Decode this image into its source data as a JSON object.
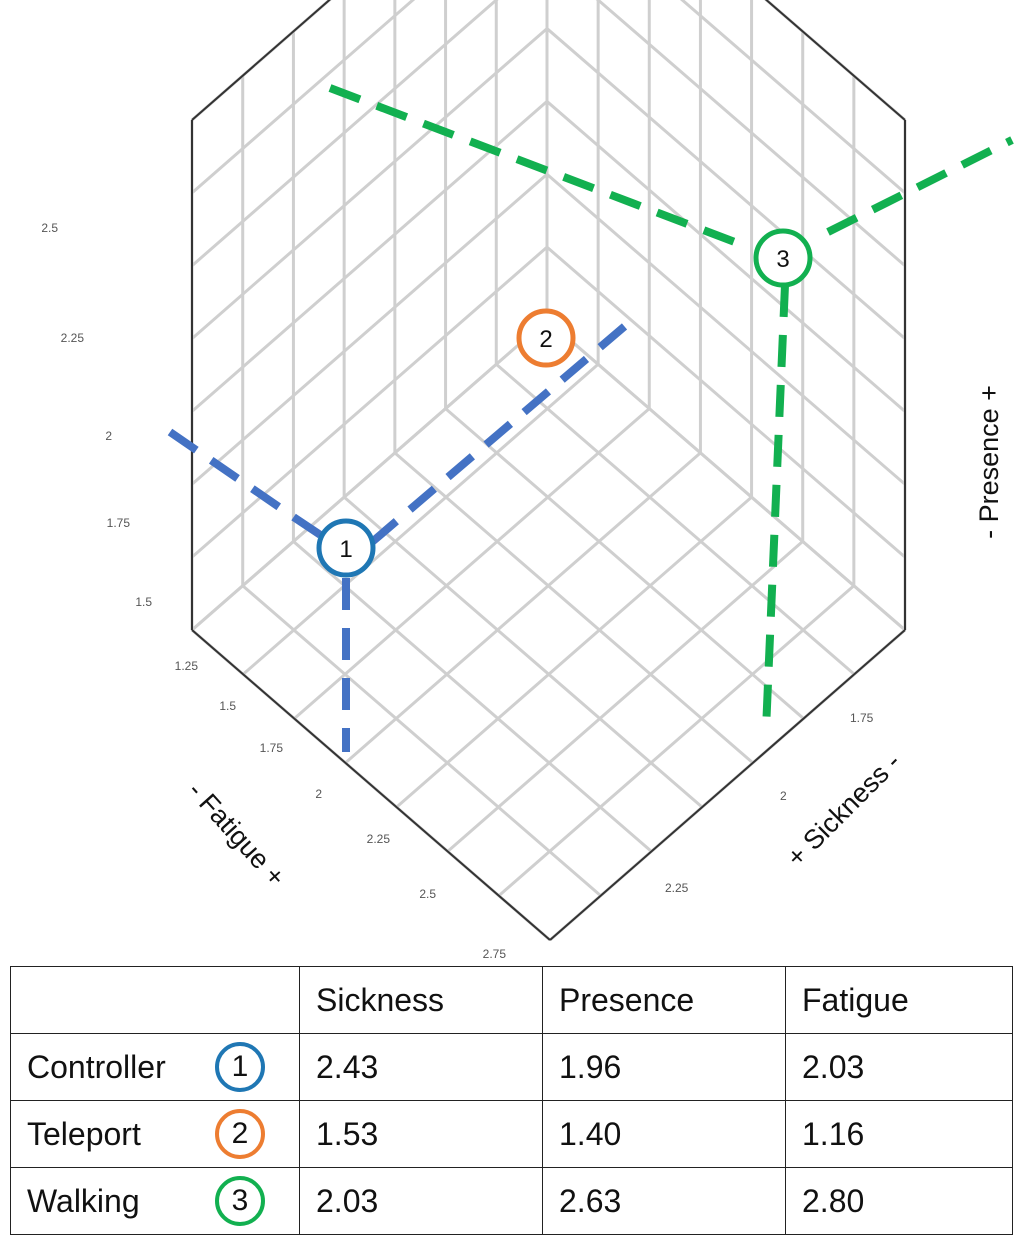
{
  "chart_data": {
    "type": "scatter",
    "title": "",
    "axes": {
      "x": {
        "label": "+ Sickness -",
        "ticks": [
          "1.75",
          "2",
          "2.25"
        ]
      },
      "y": {
        "label": "- Fatigue +",
        "ticks": [
          "1.25",
          "1.5",
          "1.75",
          "2",
          "2.25",
          "2.5",
          "2.75"
        ]
      },
      "z": {
        "label": "- Presence +",
        "ticks": [
          "1.5",
          "1.75",
          "2",
          "2.25",
          "2.5"
        ]
      }
    },
    "points": [
      {
        "label": "1",
        "name": "Controller",
        "sickness": 2.43,
        "presence": 1.96,
        "fatigue": 2.03,
        "color": "#1f77b4"
      },
      {
        "label": "2",
        "name": "Teleport",
        "sickness": 1.53,
        "presence": 1.4,
        "fatigue": 1.16,
        "color": "#ed7d31"
      },
      {
        "label": "3",
        "name": "Walking",
        "sickness": 2.03,
        "presence": 2.63,
        "fatigue": 2.8,
        "color": "#12b050"
      }
    ],
    "grid": true,
    "guide_line_colors": {
      "controller": "#4472c4",
      "walking": "#12b050"
    }
  },
  "table": {
    "headers": [
      "",
      "Sickness",
      "Presence",
      "Fatigue"
    ],
    "rows": [
      {
        "method": "Controller",
        "badge": "1",
        "badge_color": "#1f77b4",
        "values": [
          "2.43",
          "1.96",
          "2.03"
        ]
      },
      {
        "method": "Teleport",
        "badge": "2",
        "badge_color": "#ed7d31",
        "values": [
          "1.53",
          "1.40",
          "1.16"
        ]
      },
      {
        "method": "Walking",
        "badge": "3",
        "badge_color": "#12b050",
        "values": [
          "2.03",
          "2.63",
          "2.80"
        ]
      }
    ]
  }
}
